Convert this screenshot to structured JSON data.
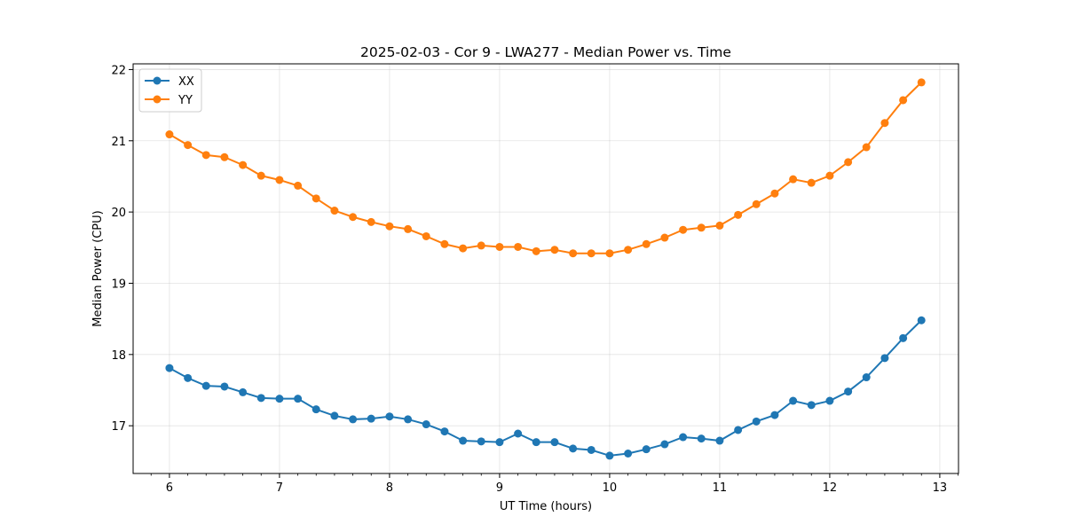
{
  "chart_data": {
    "type": "line",
    "title": "2025-02-03 - Cor 9 - LWA277 - Median Power vs. Time",
    "xlabel": "UT Time (hours)",
    "ylabel": "Median Power (CPU)",
    "xlim": [
      5.67,
      13.17
    ],
    "ylim": [
      16.33,
      22.08
    ],
    "xticks": [
      6,
      7,
      8,
      9,
      10,
      11,
      12,
      13
    ],
    "yticks": [
      17,
      18,
      19,
      20,
      21,
      22
    ],
    "grid": true,
    "legend_position": "top-left",
    "x": [
      6.0,
      6.167,
      6.333,
      6.5,
      6.667,
      6.833,
      7.0,
      7.167,
      7.333,
      7.5,
      7.667,
      7.833,
      8.0,
      8.167,
      8.333,
      8.5,
      8.667,
      8.833,
      9.0,
      9.167,
      9.333,
      9.5,
      9.667,
      9.833,
      10.0,
      10.167,
      10.333,
      10.5,
      10.667,
      10.833,
      11.0,
      11.167,
      11.333,
      11.5,
      11.667,
      11.833,
      12.0,
      12.167,
      12.333,
      12.5,
      12.667,
      12.833
    ],
    "series": [
      {
        "name": "XX",
        "color": "#1f77b4",
        "values": [
          17.81,
          17.67,
          17.56,
          17.55,
          17.47,
          17.39,
          17.38,
          17.38,
          17.23,
          17.14,
          17.09,
          17.1,
          17.13,
          17.09,
          17.02,
          16.92,
          16.79,
          16.78,
          16.77,
          16.89,
          16.77,
          16.77,
          16.68,
          16.66,
          16.58,
          16.61,
          16.67,
          16.74,
          16.84,
          16.82,
          16.79,
          16.94,
          17.06,
          17.15,
          17.35,
          17.29,
          17.35,
          17.48,
          17.68,
          17.95,
          18.23,
          18.48
        ]
      },
      {
        "name": "YY",
        "color": "#ff7f0e",
        "values": [
          21.09,
          20.94,
          20.8,
          20.77,
          20.66,
          20.51,
          20.45,
          20.37,
          20.19,
          20.02,
          19.93,
          19.86,
          19.8,
          19.76,
          19.66,
          19.55,
          19.49,
          19.53,
          19.51,
          19.51,
          19.45,
          19.47,
          19.42,
          19.42,
          19.42,
          19.47,
          19.55,
          19.64,
          19.75,
          19.78,
          19.81,
          19.96,
          20.11,
          20.26,
          20.46,
          20.41,
          20.51,
          20.7,
          20.91,
          21.25,
          21.57,
          21.82
        ]
      }
    ]
  }
}
